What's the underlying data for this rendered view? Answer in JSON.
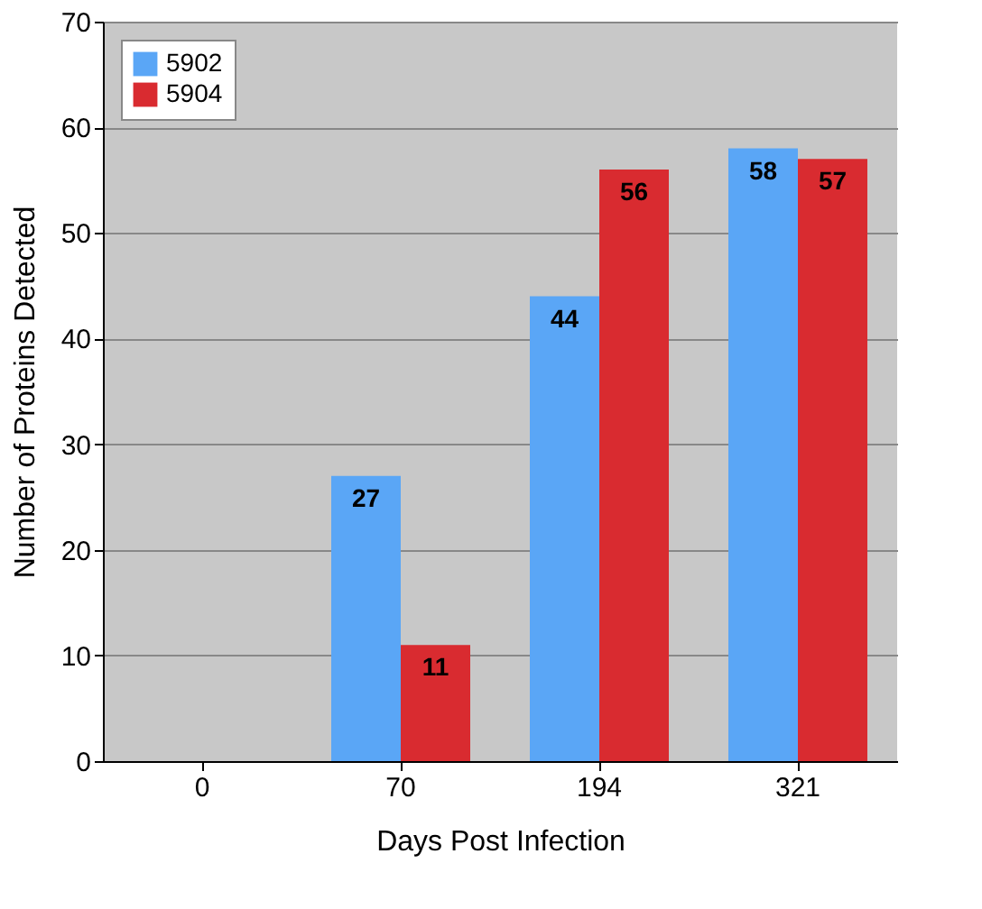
{
  "chart_data": {
    "type": "bar",
    "xlabel": "Days Post Infection",
    "ylabel": "Number of Proteins Detected",
    "categories": [
      "0",
      "70",
      "194",
      "321"
    ],
    "series": [
      {
        "name": "5902",
        "color": "#5aa6f6",
        "values": [
          0,
          27,
          44,
          58
        ],
        "value_labels": [
          null,
          "27",
          "44",
          "58"
        ]
      },
      {
        "name": "5904",
        "color": "#d92b30",
        "values": [
          0,
          11,
          56,
          57
        ],
        "value_labels": [
          null,
          "11",
          "56",
          "57"
        ]
      }
    ],
    "ylim": [
      0,
      70
    ],
    "yticks": [
      0,
      10,
      20,
      30,
      40,
      50,
      60,
      70
    ],
    "grid": "y",
    "legend": "top left"
  }
}
